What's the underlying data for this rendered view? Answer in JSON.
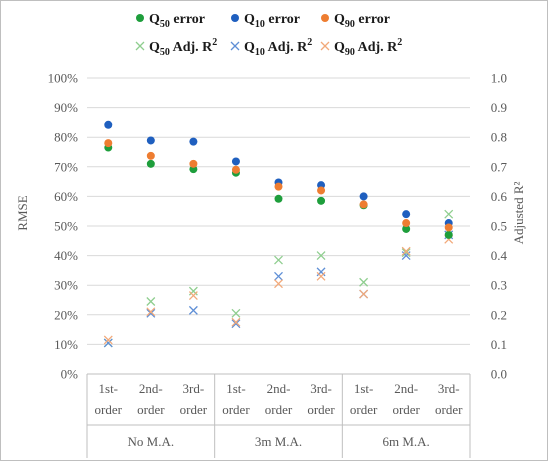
{
  "chart_data": {
    "type": "scatter",
    "ylabel": "RMSE",
    "y2label": "Adjusted R²",
    "ylim": [
      0,
      1
    ],
    "y2lim": [
      0,
      1
    ],
    "yticks": [
      "0%",
      "10%",
      "20%",
      "30%",
      "40%",
      "50%",
      "60%",
      "70%",
      "80%",
      "90%",
      "100%"
    ],
    "y2ticks": [
      "0.0",
      "0.1",
      "0.2",
      "0.3",
      "0.4",
      "0.5",
      "0.6",
      "0.7",
      "0.8",
      "0.9",
      "1.0"
    ],
    "categories": [
      {
        "line1": "1st-",
        "line2": "order"
      },
      {
        "line1": "2nd-",
        "line2": "order"
      },
      {
        "line1": "3rd-",
        "line2": "order"
      },
      {
        "line1": "1st-",
        "line2": "order"
      },
      {
        "line1": "2nd-",
        "line2": "order"
      },
      {
        "line1": "3rd-",
        "line2": "order"
      },
      {
        "line1": "1st-",
        "line2": "order"
      },
      {
        "line1": "2nd-",
        "line2": "order"
      },
      {
        "line1": "3rd-",
        "line2": "order"
      }
    ],
    "groups": [
      "No M.A.",
      "3m M.A.",
      "6m M.A."
    ],
    "legend_placement": "top",
    "series": [
      {
        "name": "Q50 error",
        "q": "Q",
        "sub": "50",
        "suffix": " error",
        "marker": "dot",
        "color": "#1e9e3c",
        "axis": "left",
        "values": [
          0.765,
          0.71,
          0.692,
          0.68,
          0.592,
          0.585,
          0.57,
          0.49,
          0.47
        ]
      },
      {
        "name": "Q10 error",
        "q": "Q",
        "sub": "10",
        "suffix": " error",
        "marker": "dot",
        "color": "#1f5fbf",
        "axis": "left",
        "values": [
          0.842,
          0.789,
          0.785,
          0.718,
          0.647,
          0.638,
          0.6,
          0.54,
          0.51
        ]
      },
      {
        "name": "Q90 error",
        "q": "Q",
        "sub": "90",
        "suffix": " error",
        "marker": "dot",
        "color": "#ee7d31",
        "axis": "left",
        "values": [
          0.78,
          0.737,
          0.71,
          0.69,
          0.633,
          0.62,
          0.573,
          0.51,
          0.495
        ]
      },
      {
        "name": "Q50 Adj. R2",
        "q": "Q",
        "sub": "50",
        "suffix": " Adj. R",
        "sup": "2",
        "marker": "x",
        "color": "#8fce8f",
        "axis": "right",
        "values": [
          0.105,
          0.245,
          0.28,
          0.205,
          0.385,
          0.4,
          0.31,
          0.41,
          0.54
        ]
      },
      {
        "name": "Q10 Adj. R2",
        "q": "Q",
        "sub": "10",
        "suffix": " Adj. R",
        "sup": "2",
        "marker": "x",
        "color": "#5f8fd6",
        "axis": "right",
        "values": [
          0.105,
          0.205,
          0.215,
          0.17,
          0.33,
          0.345,
          0.27,
          0.4,
          0.47
        ]
      },
      {
        "name": "Q90 Adj. R2",
        "q": "Q",
        "sub": "90",
        "suffix": " Adj. R",
        "sup": "2",
        "marker": "x",
        "color": "#f2a97a",
        "axis": "right",
        "values": [
          0.115,
          0.21,
          0.265,
          0.175,
          0.305,
          0.33,
          0.27,
          0.415,
          0.455
        ]
      }
    ]
  }
}
